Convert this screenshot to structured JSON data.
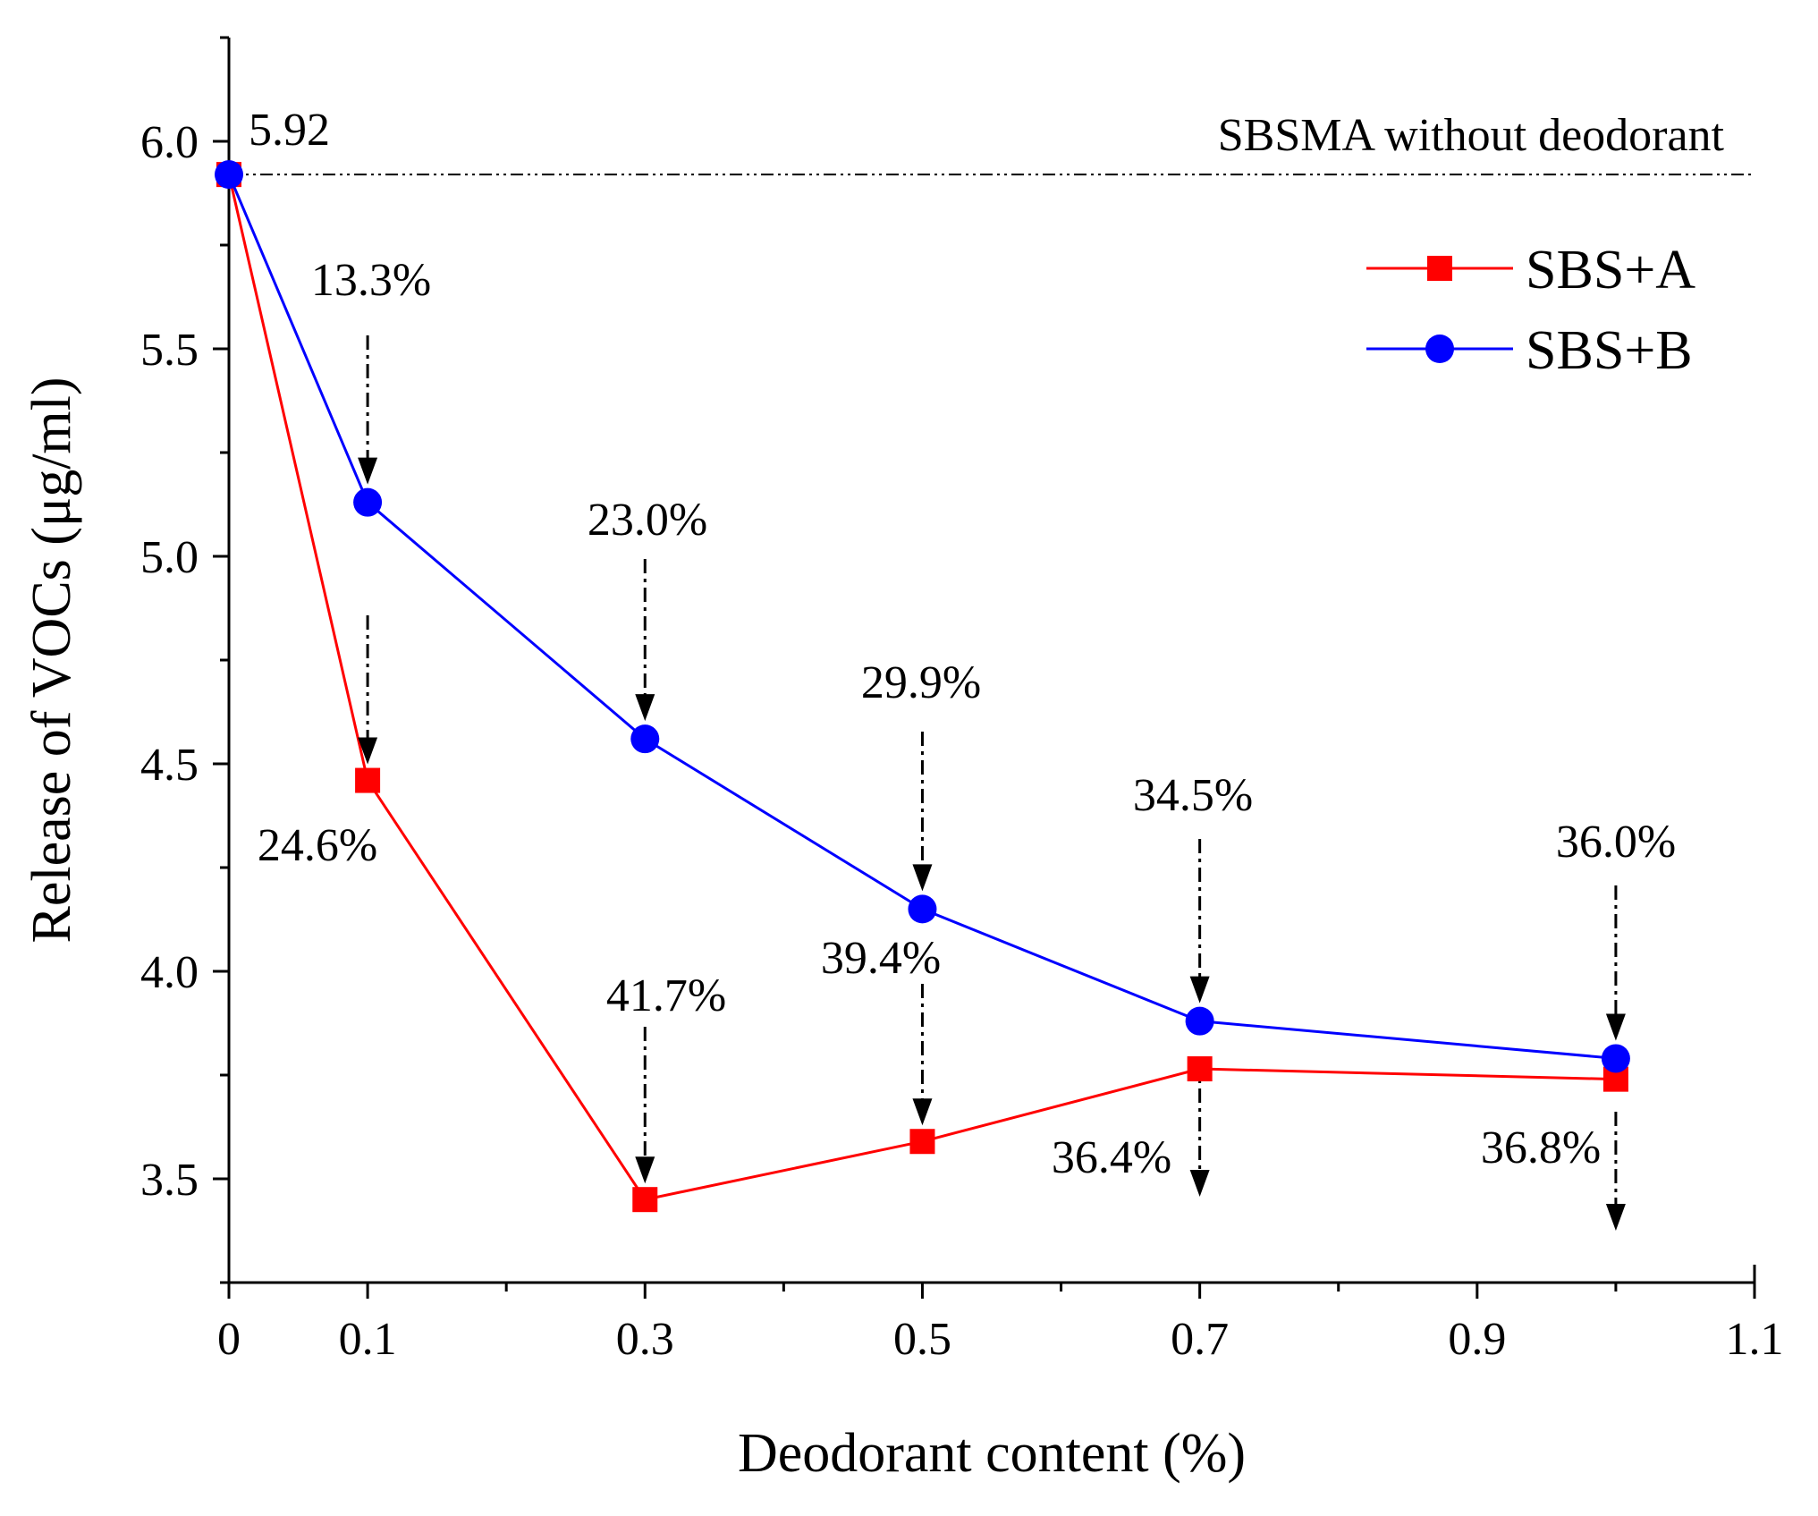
{
  "chart_data": {
    "type": "line",
    "title": "",
    "xlabel": "Deodorant content (%)",
    "ylabel": "Release of VOCs (μg/ml)",
    "xlim": [
      0,
      1.1
    ],
    "ylim": [
      3.25,
      6.25
    ],
    "xticks": [
      0,
      0.1,
      0.3,
      0.5,
      0.7,
      0.9,
      1.1
    ],
    "xtick_labels": [
      "0",
      "0.1",
      "0.3",
      "0.5",
      "0.7",
      "0.9",
      "1.1"
    ],
    "yticks": [
      3.5,
      4.0,
      4.5,
      5.0,
      5.5,
      6.0
    ],
    "ytick_labels": [
      "3.5",
      "4.0",
      "4.5",
      "5.0",
      "5.5",
      "6.0"
    ],
    "reference_line": {
      "y": 5.92,
      "label": "SBSMA without deodorant",
      "value_label": "5.92"
    },
    "series": [
      {
        "name": "SBS+A",
        "color": "#ff0000",
        "marker": "square",
        "x": [
          0,
          0.1,
          0.3,
          0.5,
          0.7,
          1.0
        ],
        "y": [
          5.92,
          4.46,
          3.45,
          3.59,
          3.765,
          3.74
        ],
        "reductions": [
          "",
          "24.6%",
          "41.7%",
          "39.4%",
          "36.4%",
          "36.8%"
        ]
      },
      {
        "name": "SBS+B",
        "color": "#0000ff",
        "marker": "circle",
        "x": [
          0,
          0.1,
          0.3,
          0.5,
          0.7,
          1.0
        ],
        "y": [
          5.92,
          5.13,
          4.56,
          4.15,
          3.88,
          3.79
        ],
        "reductions": [
          "",
          "13.3%",
          "23.0%",
          "29.9%",
          "34.5%",
          "36.0%"
        ]
      }
    ],
    "legend": {
      "position": "top-right",
      "entries": [
        "SBS+A",
        "SBS+B"
      ]
    }
  }
}
